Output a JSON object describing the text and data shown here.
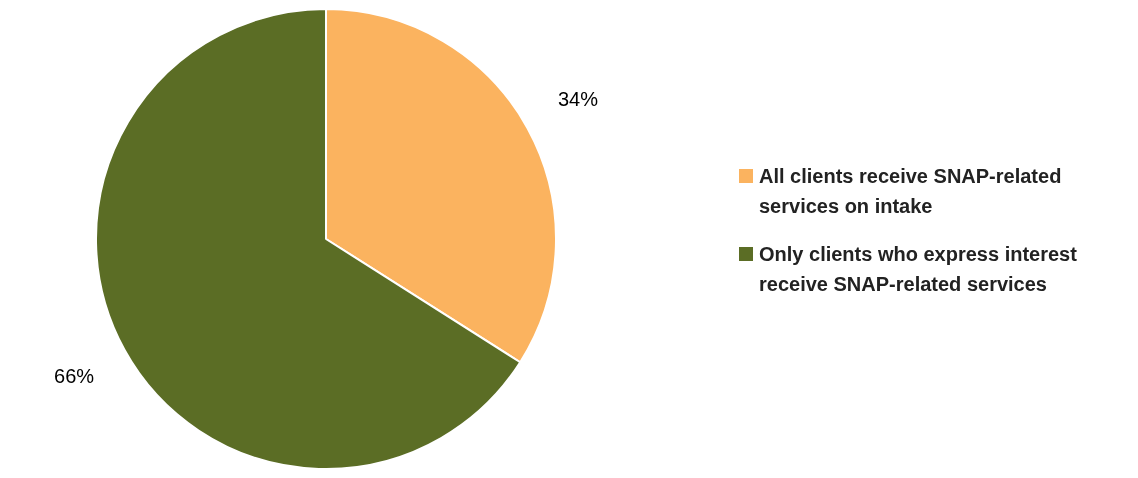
{
  "chart_data": {
    "type": "pie",
    "categories": [
      "All clients receive SNAP-related services on intake",
      "Only clients who express interest receive SNAP-related services"
    ],
    "values": [
      34,
      66
    ],
    "value_labels": [
      "34%",
      "66%"
    ],
    "colors": [
      "#fbb35f",
      "#5b6d25"
    ],
    "legend": "right"
  }
}
